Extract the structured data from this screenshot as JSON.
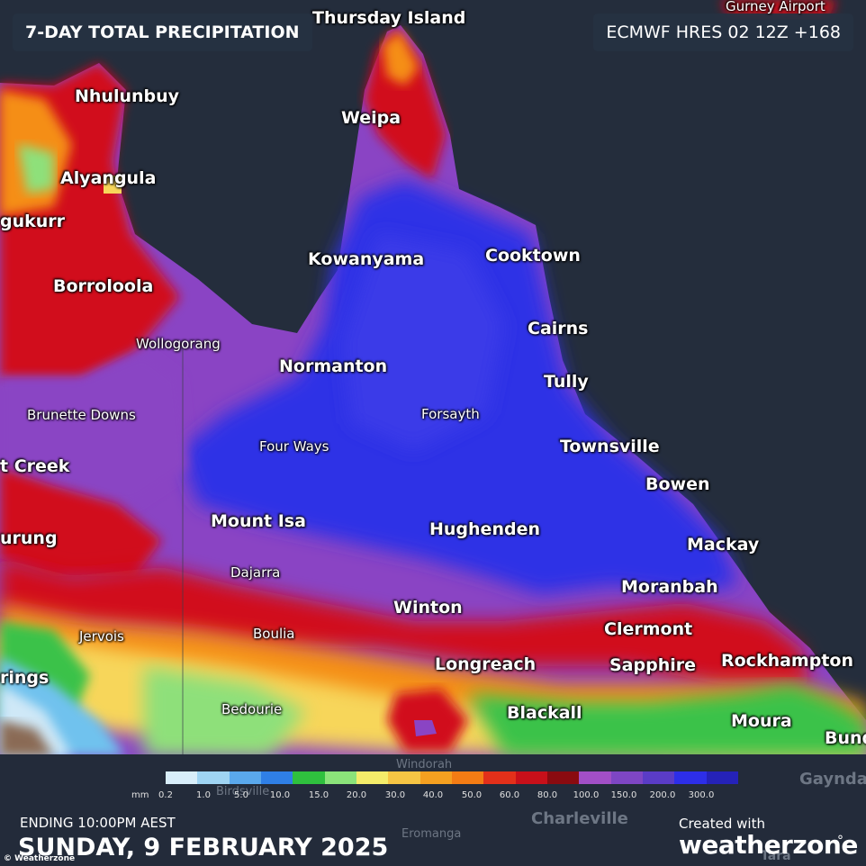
{
  "map_title": "7-DAY TOTAL PRECIPITATION",
  "model_run": "ECMWF HRES 02 12Z +168",
  "colors": {
    "ocean": "#242d3c",
    "land_dry": "#5b5f66",
    "blue_heavy": "#2f30e6",
    "purple": "#8a44c4",
    "violet": "#6a3ec8",
    "red": "#d1111a",
    "dark_red": "#a00d12",
    "orange": "#f58e12",
    "yellow": "#f7d65a",
    "light_green": "#8ee07a",
    "green": "#3bc24a",
    "light_blue": "#6fc2ee",
    "pale_blue": "#cfe8f7"
  },
  "places": {
    "thursday_island": "Thursday Island",
    "gurney_airport": "Gurney Airport",
    "nhulunbuy": "Nhulunbuy",
    "weipa": "Weipa",
    "alyangula": "Alyangula",
    "ngukurr": "gukurr",
    "kowanyama": "Kowanyama",
    "cooktown": "Cooktown",
    "borroloola": "Borroloola",
    "cairns": "Cairns",
    "wollogorang": "Wollogorang",
    "normanton": "Normanton",
    "tully": "Tully",
    "brunette_downs": "Brunette Downs",
    "forsayth": "Forsayth",
    "four_ways": "Four Ways",
    "townsville": "Townsville",
    "tennant_creek": "t Creek",
    "bowen": "Bowen",
    "mount_isa": "Mount Isa",
    "hughenden": "Hughenden",
    "elliott": "urung",
    "mackay": "Mackay",
    "dajarra": "Dajarra",
    "moranbah": "Moranbah",
    "winton": "Winton",
    "clermont": "Clermont",
    "jervois": "Jervois",
    "boulia": "Boulia",
    "longreach": "Longreach",
    "sapphire": "Sapphire",
    "rockhampton": "Rockhampton",
    "alice_springs": "rings",
    "bedourie": "Bedourie",
    "blackall": "Blackall",
    "moura": "Moura",
    "bundaberg": "Bund",
    "windorah": "Windorah",
    "birdsville": "Birdsville",
    "gayndah": "Gaynda",
    "charleville": "Charleville",
    "eromanga": "Eromanga",
    "tara": "Tara"
  },
  "legend": {
    "unit": "mm",
    "colors": [
      "#d8eefa",
      "#9fd4f3",
      "#5aa8ec",
      "#2f7fe6",
      "#2fc03e",
      "#8be37a",
      "#f4ec6a",
      "#f6c544",
      "#f5a020",
      "#f47c14",
      "#e3301a",
      "#c8101a",
      "#8a0b10",
      "#a24fc6",
      "#7e46c4",
      "#5a3cc6",
      "#2d2ee8",
      "#2522b8"
    ],
    "ticks": [
      "0.2",
      "1.0",
      "5.0",
      "10.0",
      "15.0",
      "20.0",
      "30.0",
      "40.0",
      "50.0",
      "60.0",
      "80.0",
      "100.0",
      "150.0",
      "200.0",
      "300.0"
    ]
  },
  "footer": {
    "ending": "ENDING 10:00PM AEST",
    "date": "SUNDAY, 9 FEBRUARY 2025",
    "created_with": "Created with",
    "brand_weather": "weather",
    "brand_zone": "zone",
    "credit": "© Weatherzone"
  }
}
